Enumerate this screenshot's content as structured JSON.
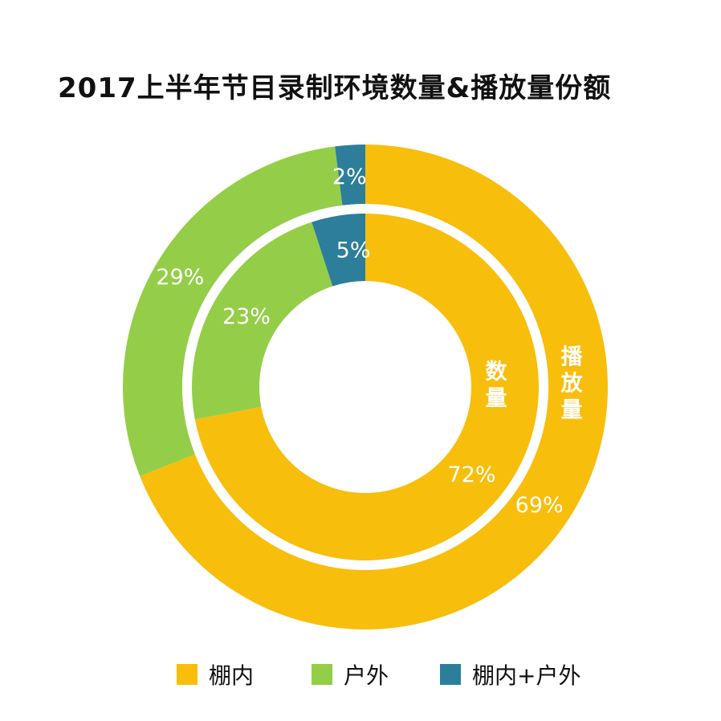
{
  "title": "2017上半年节目录制环境数量&播放量份额",
  "chart_data": {
    "type": "pie",
    "title": "2017上半年节目录制环境数量&播放量份额",
    "categories": [
      "棚内",
      "户外",
      "棚内+户外"
    ],
    "colors": [
      "#F8BE0C",
      "#94CE48",
      "#2D7E9A"
    ],
    "series": [
      {
        "name": "数量",
        "ring": "inner",
        "values": [
          72,
          23,
          5
        ],
        "labels": [
          "72%",
          "23%",
          "5%"
        ]
      },
      {
        "name": "播放量",
        "ring": "outer",
        "values": [
          69,
          29,
          2
        ],
        "labels": [
          "69%",
          "29%",
          "2%"
        ]
      }
    ],
    "legend": {
      "position": "bottom",
      "entries": [
        "棚内",
        "户外",
        "棚内+户外"
      ]
    }
  }
}
